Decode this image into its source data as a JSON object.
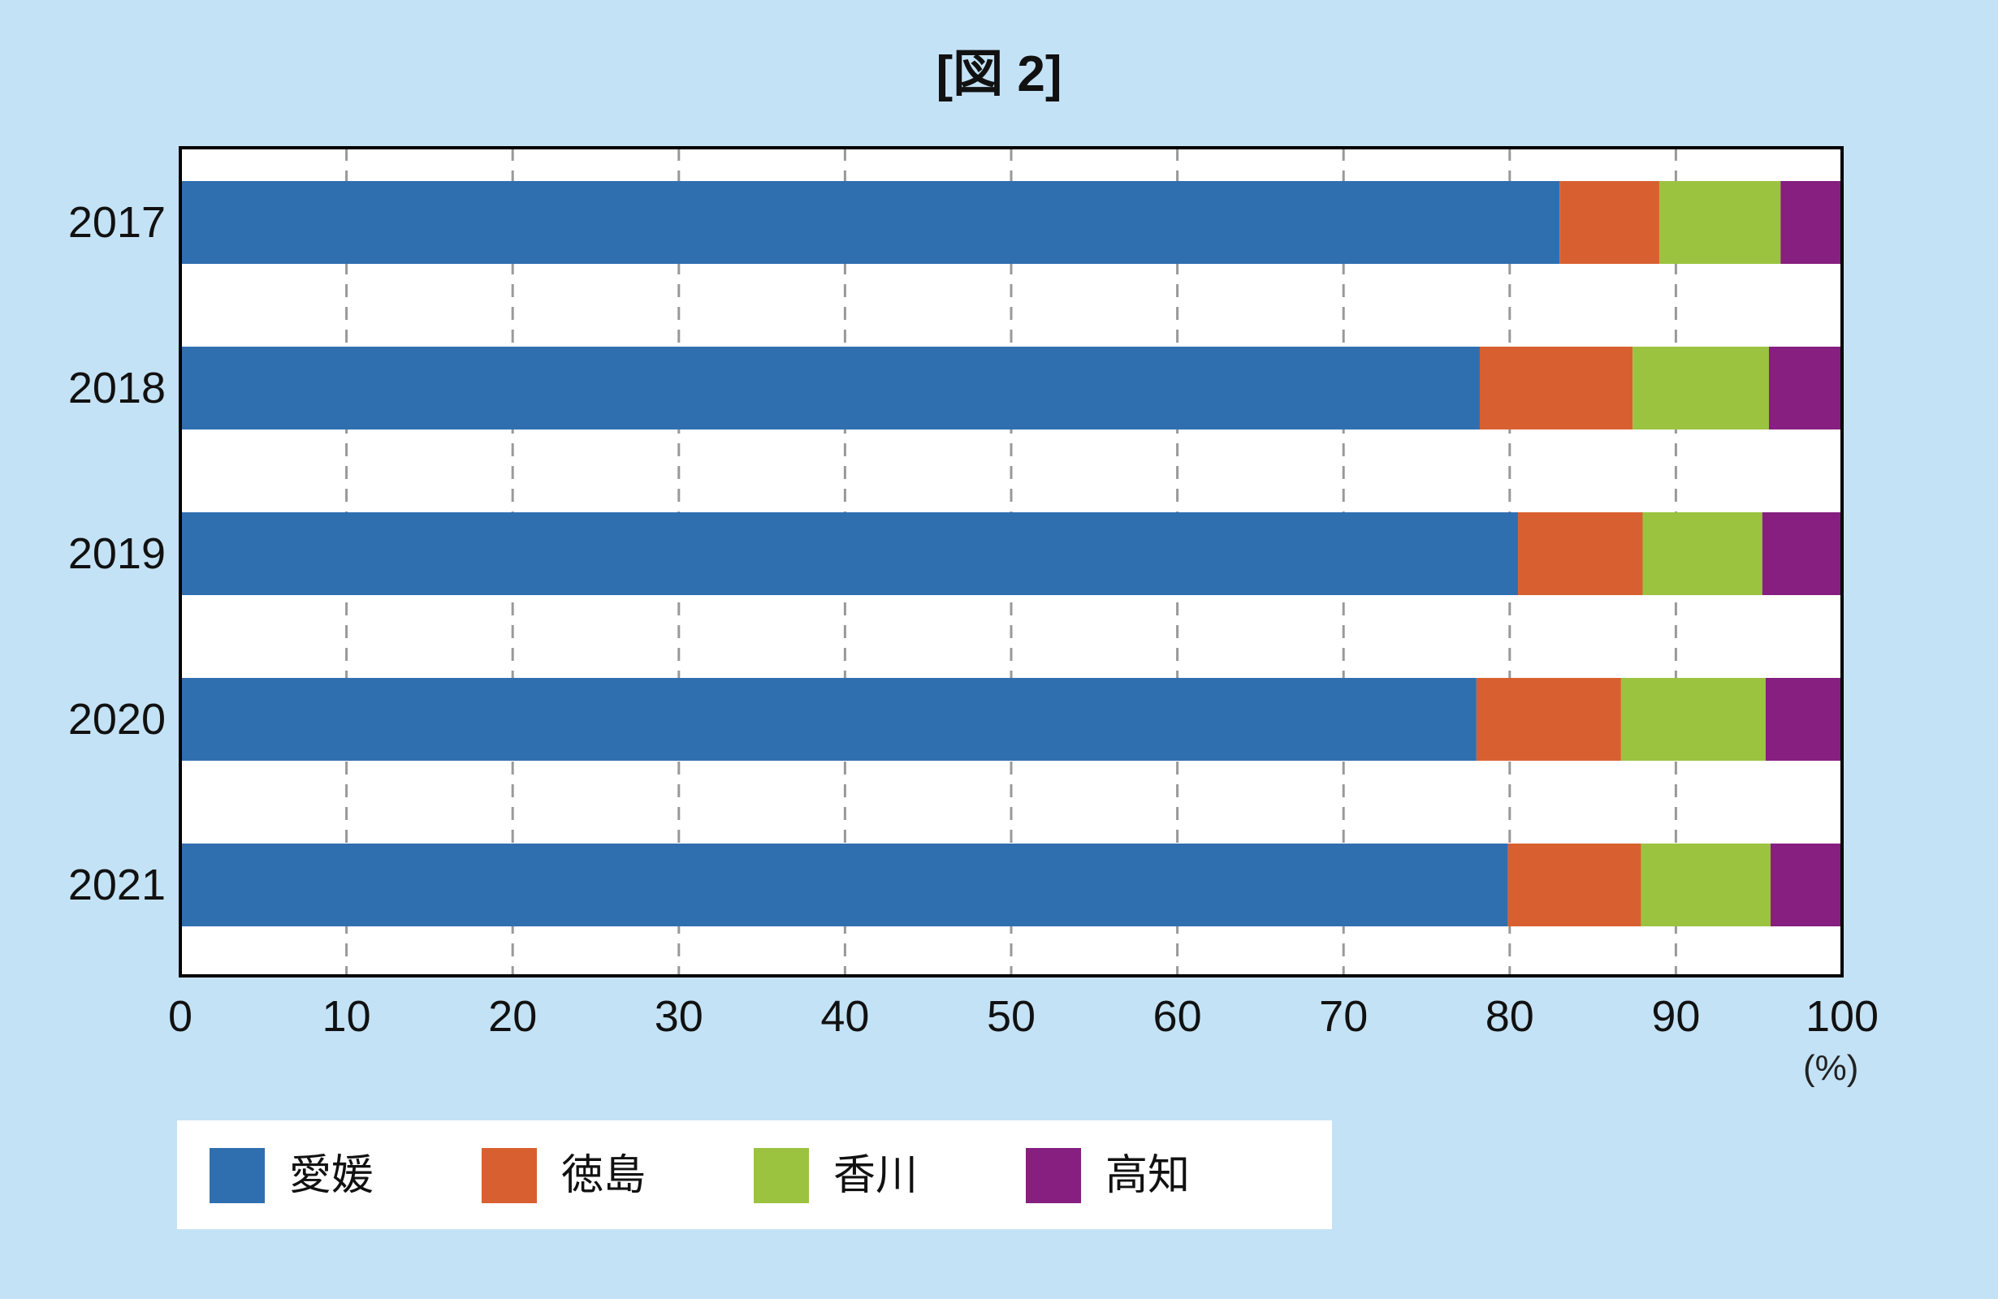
{
  "title": "[図 2]",
  "unit": "(%)",
  "colors": {
    "background": "#c4e2f5",
    "plot_background": "#ffffff",
    "grid": "#999999",
    "series": [
      "#2f6fb0",
      "#d86030",
      "#9bc340",
      "#861f80"
    ]
  },
  "chart_data": {
    "type": "bar",
    "orientation": "horizontal",
    "stacked": true,
    "title": "[図 2]",
    "xlabel": "",
    "ylabel": "",
    "unit": "(%)",
    "xlim": [
      0,
      100
    ],
    "xticks": [
      0,
      10,
      20,
      30,
      40,
      50,
      60,
      70,
      80,
      90,
      100
    ],
    "grid": "vertical dashed",
    "legend_position": "bottom-left",
    "categories": [
      "2017",
      "2018",
      "2019",
      "2020",
      "2021"
    ],
    "series": [
      {
        "name": "愛媛",
        "values": [
          83.0,
          78.2,
          80.5,
          78.0,
          79.9
        ]
      },
      {
        "name": "徳島",
        "values": [
          6.0,
          9.2,
          7.5,
          8.7,
          8.0
        ]
      },
      {
        "name": "香川",
        "values": [
          7.3,
          8.2,
          7.2,
          8.7,
          7.8
        ]
      },
      {
        "name": "高知",
        "values": [
          3.7,
          4.4,
          4.8,
          4.6,
          4.3
        ]
      }
    ]
  }
}
